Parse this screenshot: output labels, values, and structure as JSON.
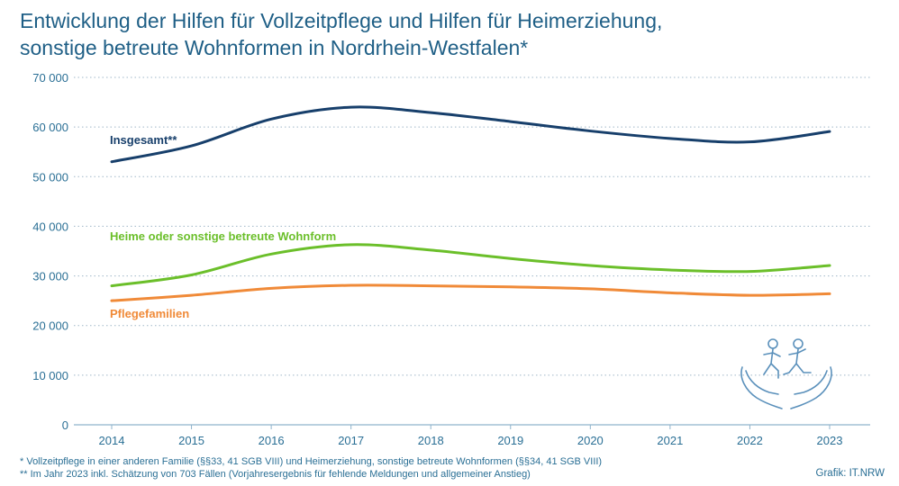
{
  "title": {
    "line1": "Entwicklung der Hilfen für Vollzeitpflege und Hilfen für Heimerziehung,",
    "line2": "sonstige betreute Wohnformen in Nordrhein-Westfalen*"
  },
  "footnotes": {
    "note1": "* Vollzeitpflege in einer anderen Familie (§§33, 41 SGB VIII) und Heimerziehung, sonstige betreute Wohnformen (§§34, 41 SGB VIII)",
    "note2": "** Im Jahr 2023 inkl. Schätzung von 703 Fällen (Vorjahresergebnis für fehlende Meldungen und allgemeiner Anstieg)"
  },
  "credit": "Grafik: IT.NRW",
  "icon": "children-in-hands-icon",
  "chart_data": {
    "type": "line",
    "x": [
      "2014",
      "2015",
      "2016",
      "2017",
      "2018",
      "2019",
      "2020",
      "2021",
      "2022",
      "2023"
    ],
    "ylim": [
      0,
      70000
    ],
    "yticks": [
      0,
      10000,
      20000,
      30000,
      40000,
      50000,
      60000,
      70000
    ],
    "ytick_labels": [
      "0",
      "10 000",
      "20 000",
      "30 000",
      "40 000",
      "50 000",
      "60 000",
      "70 000"
    ],
    "grid": "horizontal dotted",
    "series": [
      {
        "name": "Insgesamt**",
        "color": "#173f6b",
        "values": [
          53000,
          56200,
          61600,
          64000,
          62900,
          61100,
          59200,
          57700,
          57000,
          59100
        ]
      },
      {
        "name": "Heime oder sonstige betreute Wohnform",
        "color": "#6bbf2a",
        "values": [
          28000,
          30200,
          34400,
          36300,
          35200,
          33500,
          32100,
          31200,
          30900,
          32100
        ]
      },
      {
        "name": "Pflegefamilien",
        "color": "#f08a38",
        "values": [
          25000,
          26100,
          27500,
          28100,
          28000,
          27800,
          27400,
          26600,
          26100,
          26400
        ]
      }
    ]
  }
}
